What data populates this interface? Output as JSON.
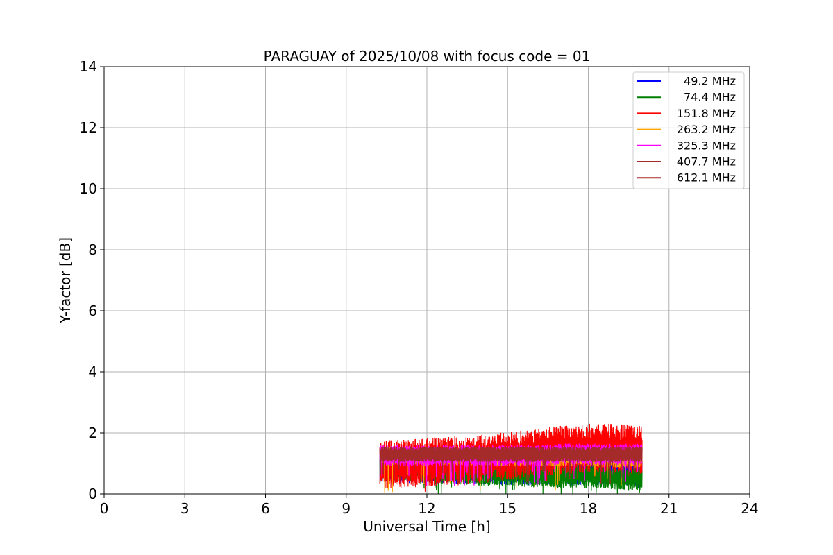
{
  "chart_data": {
    "type": "line",
    "title": "PARAGUAY of 2025/10/08 with focus code = 01",
    "xlabel": "Universal Time [h]",
    "ylabel": "Y-factor [dB]",
    "xlim": [
      0,
      24
    ],
    "ylim": [
      0,
      14
    ],
    "xticks": [
      0,
      3,
      6,
      9,
      12,
      15,
      18,
      21,
      24
    ],
    "yticks": [
      0,
      2,
      4,
      6,
      8,
      10,
      12,
      14
    ],
    "xtick_labels": [
      "0",
      "3",
      "6",
      "9",
      "12",
      "15",
      "18",
      "21",
      "24"
    ],
    "ytick_labels": [
      "0",
      "2",
      "4",
      "6",
      "8",
      "10",
      "12",
      "14"
    ],
    "grid": true,
    "legend_position": "top-right",
    "x_range_active": [
      10.25,
      20
    ],
    "series": [
      {
        "name": "49.2 MHz",
        "legend_label": "  49.2 MHz",
        "color": "#0000ff",
        "base": [
          0.95,
          0.95,
          0.95,
          0.92,
          0.9,
          0.9,
          0.88,
          0.88,
          0.9,
          0.9,
          0.85
        ],
        "amp": 0.6,
        "spike": 0.35
      },
      {
        "name": "74.4 MHz",
        "legend_label": "  74.4 MHz",
        "color": "#008000",
        "base": [
          0.8,
          0.8,
          0.75,
          0.7,
          0.65,
          0.65,
          0.6,
          0.6,
          0.6,
          0.55,
          0.5
        ],
        "amp": 0.4,
        "spike": 0.4
      },
      {
        "name": "151.8 MHz",
        "legend_label": "151.8 MHz",
        "color": "#ff0000",
        "base": [
          0.95,
          1.0,
          1.05,
          1.1,
          1.15,
          1.25,
          1.35,
          1.45,
          1.5,
          1.5,
          1.45
        ],
        "amp": 0.8,
        "spike": 0.5
      },
      {
        "name": "263.2 MHz",
        "legend_label": "263.2 MHz",
        "color": "#ffa500",
        "base": [
          1.25,
          1.25,
          1.25,
          1.25,
          1.2,
          1.2,
          1.2,
          1.2,
          1.2,
          1.15,
          1.15
        ],
        "amp": 0.3,
        "spike": 0.6
      },
      {
        "name": "325.3 MHz",
        "legend_label": "325.3 MHz",
        "color": "#ff00ff",
        "base": [
          1.25,
          1.25,
          1.25,
          1.25,
          1.25,
          1.25,
          1.25,
          1.3,
          1.3,
          1.3,
          1.3
        ],
        "amp": 0.35,
        "spike": 0.5
      },
      {
        "name": "407.7 MHz",
        "legend_label": "407.7 MHz",
        "color": "#a52a2a",
        "base": [
          1.3,
          1.3,
          1.3,
          1.3,
          1.3,
          1.3,
          1.3,
          1.3,
          1.3,
          1.3,
          1.3
        ],
        "amp": 0.25,
        "spike": 0.5
      },
      {
        "name": "612.1 MHz",
        "legend_label": "612.1 MHz",
        "color": "#a52a2a",
        "base": [
          1.3,
          1.3,
          1.3,
          1.3,
          1.3,
          1.3,
          1.3,
          1.3,
          1.3,
          1.3,
          1.3
        ],
        "amp": 0.25,
        "spike": 0.4
      }
    ]
  }
}
